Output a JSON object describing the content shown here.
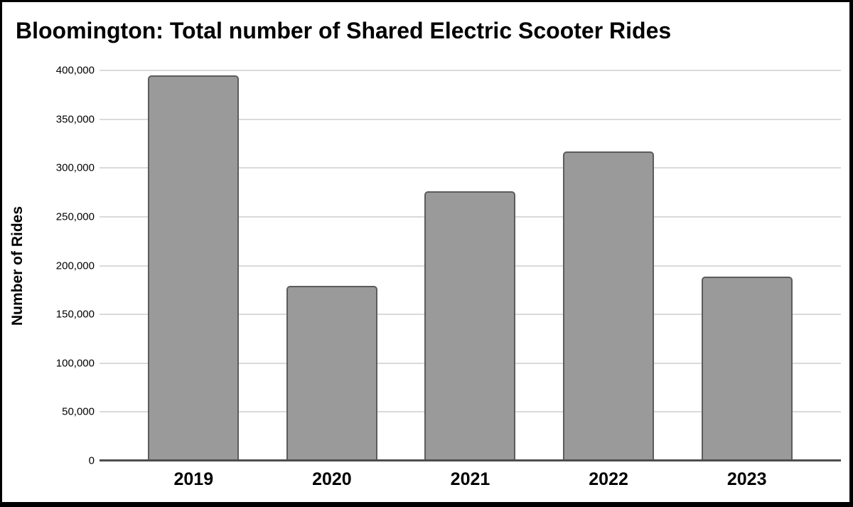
{
  "title": "Bloomington: Total number of Shared Electric Scooter Rides",
  "chart_data": {
    "type": "bar",
    "title": "Bloomington: Total number of Shared Electric Scooter Rides",
    "categories": [
      "2019",
      "2020",
      "2021",
      "2022",
      "2023"
    ],
    "values": [
      395000,
      179000,
      276000,
      317000,
      189000
    ],
    "xlabel": "",
    "ylabel": "Number of Rides",
    "ylim": [
      0,
      400000
    ],
    "ytick_step": 50000,
    "ytick_labels": [
      "0",
      "50,000",
      "100,000",
      "150,000",
      "200,000",
      "250,000",
      "300,000",
      "350,000",
      "400,000"
    ],
    "grid": true,
    "legend": false
  },
  "colors": {
    "background": "#ffffff",
    "frame_border": "#000000",
    "bar_fill": "#9a9a9a",
    "bar_border": "#5c5c5c",
    "gridline": "#dadada",
    "axis_line": "#4d4d4d",
    "text": "#000000"
  }
}
